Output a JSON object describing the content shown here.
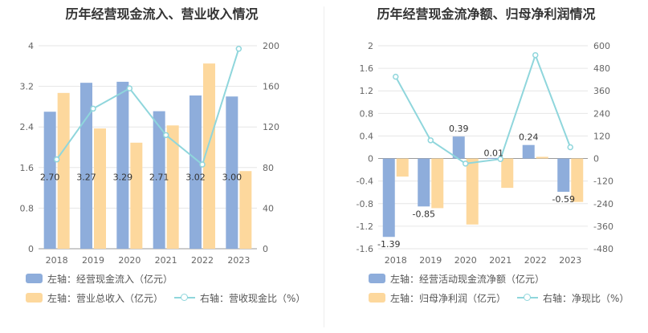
{
  "colors": {
    "bar1": "#8eaddb",
    "bar2": "#fdd89d",
    "line": "#8fd6dc",
    "grid": "#e6e6e6"
  },
  "chart_data": [
    {
      "type": "bar",
      "title": "历年经营现金流入、营业收入情况",
      "categories": [
        "2018",
        "2019",
        "2020",
        "2021",
        "2022",
        "2023"
      ],
      "ylim_left": [
        0,
        4
      ],
      "left_ticks": [
        "0",
        "0.8",
        "1.6",
        "2.4",
        "3.2",
        "4"
      ],
      "ylim_right": [
        0,
        200
      ],
      "right_ticks": [
        "0",
        "40",
        "80",
        "120",
        "160",
        "200"
      ],
      "series": [
        {
          "name": "左轴：经营现金流入（亿元）",
          "axis": "left",
          "kind": "bar",
          "values": [
            2.7,
            3.27,
            3.29,
            2.71,
            3.02,
            3.0
          ],
          "labels": [
            "2.70",
            "3.27",
            "3.29",
            "2.71",
            "3.02",
            "3.00"
          ]
        },
        {
          "name": "左轴：营业总收入（亿元）",
          "axis": "left",
          "kind": "bar",
          "values": [
            3.07,
            2.37,
            2.09,
            2.43,
            3.65,
            1.53
          ]
        },
        {
          "name": "右轴：营收现金比（%）",
          "axis": "right",
          "kind": "line",
          "values": [
            88,
            138,
            158,
            112,
            83,
            197
          ]
        }
      ]
    },
    {
      "type": "bar",
      "title": "历年经营现金流净额、归母净利润情况",
      "categories": [
        "2018",
        "2019",
        "2020",
        "2021",
        "2022",
        "2023"
      ],
      "ylim_left": [
        -1.6,
        2
      ],
      "left_ticks": [
        "-1.6",
        "-1.2",
        "-0.8",
        "-0.4",
        "0",
        "0.4",
        "0.8",
        "1.2",
        "1.6",
        "2"
      ],
      "ylim_right": [
        -480,
        600
      ],
      "right_ticks": [
        "-480",
        "-360",
        "-240",
        "-120",
        "0",
        "120",
        "240",
        "360",
        "480",
        "600"
      ],
      "series": [
        {
          "name": "左轴：经营活动现金流净额（亿元）",
          "axis": "left",
          "kind": "bar",
          "values": [
            -1.39,
            -0.85,
            0.39,
            0.01,
            0.24,
            -0.59
          ],
          "labels": [
            "-1.39",
            "-0.85",
            "0.39",
            "0.01",
            "0.24",
            "-0.59"
          ]
        },
        {
          "name": "左轴：归母净利润（亿元）",
          "axis": "left",
          "kind": "bar",
          "values": [
            -0.32,
            -0.88,
            -1.17,
            -0.52,
            0.03,
            -0.77
          ]
        },
        {
          "name": "右轴：净现比（%）",
          "axis": "right",
          "kind": "line",
          "values": [
            435,
            97,
            -27,
            -3,
            550,
            60
          ]
        }
      ]
    }
  ]
}
